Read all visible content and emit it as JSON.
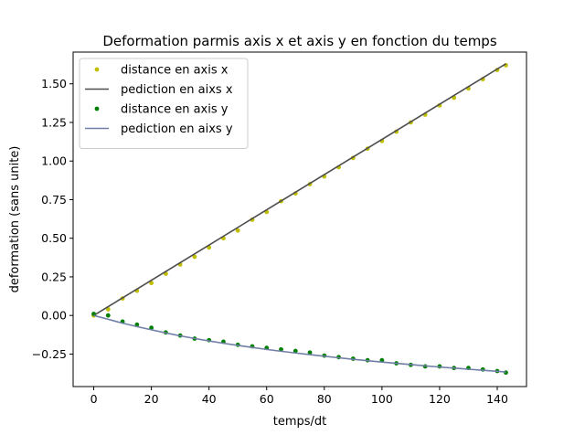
{
  "chart_data": {
    "type": "line",
    "title": "Deformation parmis axis x et axis y en fonction du temps",
    "xlabel": "temps/dt",
    "ylabel": "deformation (sans unite)",
    "xlim": [
      -7.15,
      150.15
    ],
    "ylim": [
      -0.4605,
      1.7055
    ],
    "x_ticks": [
      0,
      20,
      40,
      60,
      80,
      100,
      120,
      140
    ],
    "y_ticks": [
      -0.25,
      0.0,
      0.25,
      0.5,
      0.75,
      1.0,
      1.25,
      1.5
    ],
    "y_tick_labels": [
      "−0.25",
      "0.00",
      "0.25",
      "0.50",
      "0.75",
      "1.00",
      "1.25",
      "1.50"
    ],
    "grid": false,
    "legend_position": "upper left",
    "x": [
      0,
      5,
      10,
      15,
      20,
      25,
      30,
      35,
      40,
      45,
      50,
      55,
      60,
      65,
      70,
      75,
      80,
      85,
      90,
      95,
      100,
      105,
      110,
      115,
      120,
      125,
      130,
      135,
      140,
      143
    ],
    "series": [
      {
        "name": "distance en axis x",
        "style": "markers",
        "color": "#bfbf00",
        "values": [
          0.0,
          0.04,
          0.11,
          0.16,
          0.21,
          0.27,
          0.33,
          0.38,
          0.44,
          0.5,
          0.55,
          0.62,
          0.67,
          0.74,
          0.79,
          0.85,
          0.9,
          0.96,
          1.02,
          1.08,
          1.13,
          1.19,
          1.25,
          1.3,
          1.36,
          1.41,
          1.47,
          1.53,
          1.59,
          1.62
        ]
      },
      {
        "name": "pediction en aixs x",
        "style": "line",
        "color": "#4d4d4d",
        "values": [
          0.0,
          0.057,
          0.114,
          0.171,
          0.228,
          0.285,
          0.342,
          0.399,
          0.456,
          0.513,
          0.57,
          0.627,
          0.684,
          0.741,
          0.798,
          0.855,
          0.912,
          0.969,
          1.026,
          1.083,
          1.14,
          1.197,
          1.254,
          1.311,
          1.368,
          1.425,
          1.482,
          1.539,
          1.596,
          1.63
        ]
      },
      {
        "name": "distance en axis y",
        "style": "markers",
        "color": "#008000",
        "values": [
          0.01,
          0.0,
          -0.04,
          -0.06,
          -0.08,
          -0.11,
          -0.13,
          -0.15,
          -0.16,
          -0.17,
          -0.19,
          -0.2,
          -0.21,
          -0.22,
          -0.23,
          -0.24,
          -0.26,
          -0.27,
          -0.28,
          -0.29,
          -0.29,
          -0.31,
          -0.32,
          -0.33,
          -0.33,
          -0.34,
          -0.34,
          -0.35,
          -0.36,
          -0.37
        ]
      },
      {
        "name": "pediction en aixs y",
        "style": "line",
        "color": "#707fa6",
        "values": [
          0.0,
          -0.025,
          -0.05,
          -0.072,
          -0.093,
          -0.113,
          -0.132,
          -0.149,
          -0.165,
          -0.18,
          -0.194,
          -0.207,
          -0.22,
          -0.232,
          -0.243,
          -0.254,
          -0.264,
          -0.274,
          -0.284,
          -0.293,
          -0.302,
          -0.31,
          -0.318,
          -0.326,
          -0.334,
          -0.341,
          -0.348,
          -0.355,
          -0.362,
          -0.366
        ]
      }
    ]
  }
}
